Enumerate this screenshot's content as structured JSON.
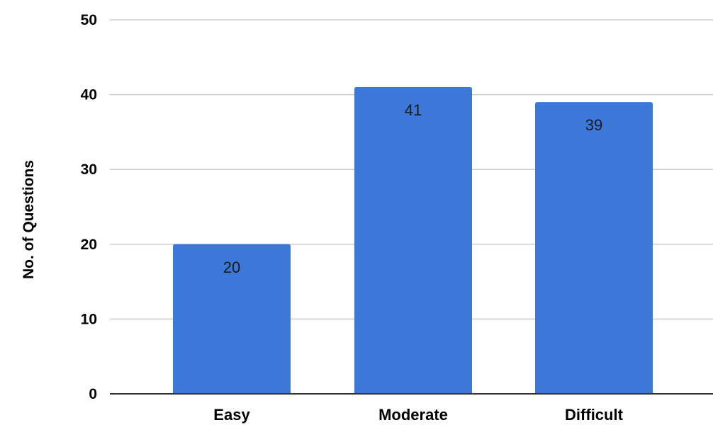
{
  "chart_data": {
    "type": "bar",
    "categories": [
      "Easy",
      "Moderate",
      "Difficult"
    ],
    "series": [
      {
        "values": [
          20,
          41,
          39
        ]
      }
    ],
    "data_labels": [
      "20",
      "41",
      "39"
    ],
    "title": "",
    "xlabel": "",
    "ylabel": "No. of Questions",
    "ylim": [
      0,
      50
    ],
    "yticks": [
      0,
      10,
      20,
      30,
      40,
      50
    ],
    "grid": true,
    "legend": "none",
    "colors": {
      "bar": "#3c78d8",
      "grid": "#cccccc",
      "baseline": "#333333"
    }
  }
}
